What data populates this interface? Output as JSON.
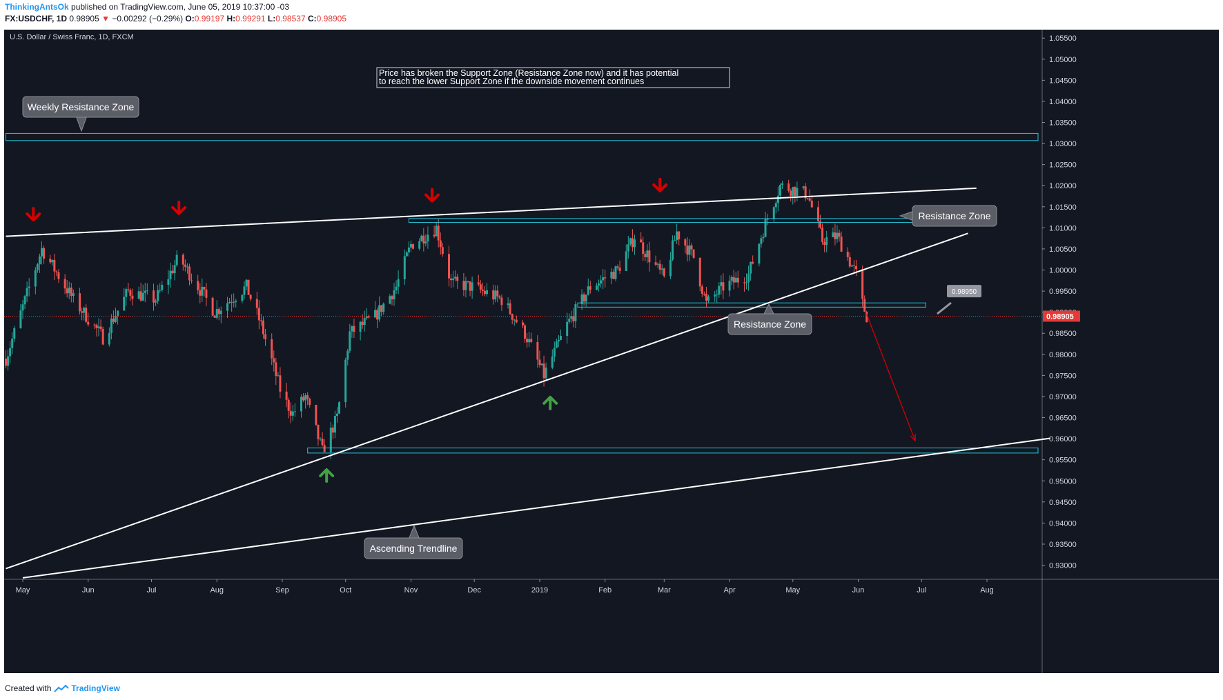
{
  "header": {
    "author": "ThinkingAntsOk",
    "published": "published on TradingView.com, June 05, 2019 10:37:00 -03",
    "symbol": "FX:USDCHF, 1D",
    "last": "0.98905",
    "change": "−0.00292 (−0.29%)",
    "o_label": "O:",
    "o_value": "0.99197",
    "h_label": "H:",
    "h_value": "0.99291",
    "l_label": "L:",
    "l_value": "0.98537",
    "c_label": "C:",
    "c_value": "0.98905"
  },
  "footer": {
    "created_with": "Created with",
    "brand": "TradingView"
  },
  "colors": {
    "background": "#131722",
    "bull": "#26a69a",
    "bear": "#ef5350",
    "zone": "#26c6da",
    "trendline": "#ffffff",
    "arrow_down": "#d50000",
    "arrow_up": "#43a047",
    "price_line": "#e53935",
    "callout": "#5b5e66"
  },
  "chart_data": {
    "type": "candlestick",
    "title": "U.S. Dollar / Swiss Franc, 1D, FXCM",
    "ylim": [
      0.926,
      1.057
    ],
    "y_ticks": [
      "1.05500",
      "1.05000",
      "1.04500",
      "1.04000",
      "1.03500",
      "1.03000",
      "1.02500",
      "1.02000",
      "1.01500",
      "1.01000",
      "1.00500",
      "1.00000",
      "0.99500",
      "0.99000",
      "0.98500",
      "0.98000",
      "0.97500",
      "0.97000",
      "0.96500",
      "0.96000",
      "0.95500",
      "0.95000",
      "0.94500",
      "0.94000",
      "0.93500",
      "0.93000"
    ],
    "x_ticks": [
      {
        "label": "May",
        "date": "2018-05-01"
      },
      {
        "label": "Jun",
        "date": "2018-06-01"
      },
      {
        "label": "Jul",
        "date": "2018-07-01"
      },
      {
        "label": "Aug",
        "date": "2018-08-01"
      },
      {
        "label": "Sep",
        "date": "2018-09-01"
      },
      {
        "label": "Oct",
        "date": "2018-10-01"
      },
      {
        "label": "Nov",
        "date": "2018-11-01"
      },
      {
        "label": "Dec",
        "date": "2018-12-01"
      },
      {
        "label": "2019",
        "date": "2019-01-01"
      },
      {
        "label": "Feb",
        "date": "2019-02-01"
      },
      {
        "label": "Mar",
        "date": "2019-03-01"
      },
      {
        "label": "Apr",
        "date": "2019-04-01"
      },
      {
        "label": "May",
        "date": "2019-05-01"
      },
      {
        "label": "Jun",
        "date": "2019-06-01"
      },
      {
        "label": "Jul",
        "date": "2019-07-01"
      },
      {
        "label": "Aug",
        "date": "2019-08-01"
      }
    ],
    "price_path": [
      {
        "date": "2018-04-23",
        "close": 0.979
      },
      {
        "date": "2018-05-10",
        "close": 1.005
      },
      {
        "date": "2018-05-25",
        "close": 0.993
      },
      {
        "date": "2018-06-08",
        "close": 0.984
      },
      {
        "date": "2018-06-20",
        "close": 0.995
      },
      {
        "date": "2018-07-03",
        "close": 0.993
      },
      {
        "date": "2018-07-14",
        "close": 1.003
      },
      {
        "date": "2018-07-31",
        "close": 0.99
      },
      {
        "date": "2018-08-15",
        "close": 0.996
      },
      {
        "date": "2018-08-22",
        "close": 0.987
      },
      {
        "date": "2018-09-01",
        "close": 0.97
      },
      {
        "date": "2018-09-06",
        "close": 0.966
      },
      {
        "date": "2018-09-12",
        "close": 0.97
      },
      {
        "date": "2018-09-20",
        "close": 0.957
      },
      {
        "date": "2018-09-27",
        "close": 0.965
      },
      {
        "date": "2018-10-03",
        "close": 0.985
      },
      {
        "date": "2018-10-15",
        "close": 0.989
      },
      {
        "date": "2018-10-25",
        "close": 0.996
      },
      {
        "date": "2018-11-01",
        "close": 1.006
      },
      {
        "date": "2018-11-13",
        "close": 1.01
      },
      {
        "date": "2018-11-20",
        "close": 0.997
      },
      {
        "date": "2018-11-30",
        "close": 0.996
      },
      {
        "date": "2018-12-14",
        "close": 0.993
      },
      {
        "date": "2018-12-25",
        "close": 0.985
      },
      {
        "date": "2019-01-03",
        "close": 0.975
      },
      {
        "date": "2019-01-14",
        "close": 0.987
      },
      {
        "date": "2019-01-25",
        "close": 0.996
      },
      {
        "date": "2019-02-07",
        "close": 1.0
      },
      {
        "date": "2019-02-15",
        "close": 1.008
      },
      {
        "date": "2019-03-01",
        "close": 0.998
      },
      {
        "date": "2019-03-07",
        "close": 1.009
      },
      {
        "date": "2019-03-15",
        "close": 1.003
      },
      {
        "date": "2019-03-21",
        "close": 0.992
      },
      {
        "date": "2019-03-29",
        "close": 0.996
      },
      {
        "date": "2019-04-10",
        "close": 0.999
      },
      {
        "date": "2019-04-18",
        "close": 1.011
      },
      {
        "date": "2019-04-25",
        "close": 1.02
      },
      {
        "date": "2019-05-02",
        "close": 1.019
      },
      {
        "date": "2019-05-08",
        "close": 1.018
      },
      {
        "date": "2019-05-15",
        "close": 1.007
      },
      {
        "date": "2019-05-22",
        "close": 1.008
      },
      {
        "date": "2019-05-27",
        "close": 1.003
      },
      {
        "date": "2019-05-31",
        "close": 0.999
      },
      {
        "date": "2019-06-03",
        "close": 0.992
      },
      {
        "date": "2019-06-05",
        "close": 0.98905
      }
    ],
    "last_price": 0.98905,
    "price_labels": [
      "0.98905",
      "0.98950"
    ],
    "zones": [
      {
        "name": "Weekly Resistance Zone",
        "from_date": "2018-04-23",
        "to_date": "2019-08-31",
        "low": 1.0307,
        "high": 1.0324
      },
      {
        "name": "Resistance Zone",
        "from_date": "2018-10-31",
        "to_date": "2019-07-01",
        "low": 1.0113,
        "high": 1.0122
      },
      {
        "name": "Resistance Zone",
        "from_date": "2019-01-19",
        "to_date": "2019-07-03",
        "low": 0.9912,
        "high": 0.9922
      },
      {
        "name": "Support Zone",
        "from_date": "2018-09-13",
        "to_date": "2019-08-31",
        "low": 0.9566,
        "high": 0.9578
      }
    ],
    "trendlines": [
      {
        "from": {
          "date": "2018-04-23",
          "price": 1.008
        },
        "to": {
          "date": "2019-07-27",
          "price": 1.0194
        }
      },
      {
        "from": {
          "date": "2018-04-23",
          "price": 0.9292
        },
        "to": {
          "date": "2019-07-23",
          "price": 1.0087
        }
      },
      {
        "from": {
          "date": "2018-05-01",
          "price": 0.927
        },
        "to": {
          "date": "2019-08-31",
          "price": 0.9601
        }
      }
    ],
    "projection": {
      "from": {
        "date": "2019-06-05",
        "price": 0.9895
      },
      "to": {
        "date": "2019-06-28",
        "price": 0.9595
      }
    },
    "arrows_down": [
      {
        "date": "2018-05-06",
        "price": 1.0125
      },
      {
        "date": "2018-07-14",
        "price": 1.014
      },
      {
        "date": "2018-11-11",
        "price": 1.017
      },
      {
        "date": "2019-02-27",
        "price": 1.0194
      }
    ],
    "arrows_up": [
      {
        "date": "2018-09-22",
        "price": 0.952
      },
      {
        "date": "2019-01-06",
        "price": 0.9692
      }
    ],
    "annotations": {
      "note": "Price has broken the Support Zone (Resistance Zone now) and it has potential\nto reach the lower Support Zone if the downside movement continues",
      "callouts": [
        "Weekly Resistance Zone",
        "Resistance Zone",
        "Resistance Zone",
        "Ascending Trendline"
      ]
    },
    "grid": false
  }
}
